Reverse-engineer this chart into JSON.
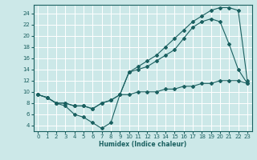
{
  "title": "",
  "xlabel": "Humidex (Indice chaleur)",
  "bg_color": "#cce8e8",
  "line_color": "#1a6060",
  "xlim": [
    -0.5,
    23.5
  ],
  "ylim": [
    3.0,
    25.5
  ],
  "yticks": [
    4,
    6,
    8,
    10,
    12,
    14,
    16,
    18,
    20,
    22,
    24
  ],
  "xticks": [
    0,
    1,
    2,
    3,
    4,
    5,
    6,
    7,
    8,
    9,
    10,
    11,
    12,
    13,
    14,
    15,
    16,
    17,
    18,
    19,
    20,
    21,
    22,
    23
  ],
  "line1_x": [
    0,
    1,
    2,
    3,
    4,
    5,
    6,
    7,
    8,
    9,
    10,
    11,
    12,
    13,
    14,
    15,
    16,
    17,
    18,
    19,
    20,
    21,
    22,
    23
  ],
  "line1_y": [
    9.5,
    9.0,
    8.0,
    8.0,
    7.5,
    7.5,
    7.0,
    8.0,
    8.5,
    9.5,
    9.5,
    10.0,
    10.0,
    10.0,
    10.5,
    10.5,
    11.0,
    11.0,
    11.5,
    11.5,
    12.0,
    12.0,
    12.0,
    11.5
  ],
  "line2_x": [
    0,
    1,
    2,
    3,
    4,
    5,
    6,
    7,
    8,
    9,
    10,
    11,
    12,
    13,
    14,
    15,
    16,
    17,
    18,
    19,
    20,
    21,
    22,
    23
  ],
  "line2_y": [
    9.5,
    9.0,
    8.0,
    7.5,
    6.0,
    5.5,
    4.5,
    3.5,
    4.5,
    9.5,
    13.5,
    14.0,
    14.5,
    15.5,
    16.5,
    17.5,
    19.5,
    21.5,
    22.5,
    23.0,
    22.5,
    18.5,
    14.0,
    11.5
  ],
  "line3_x": [
    0,
    1,
    2,
    3,
    4,
    5,
    6,
    7,
    8,
    9,
    10,
    11,
    12,
    13,
    14,
    15,
    16,
    17,
    18,
    19,
    20,
    21,
    22,
    23
  ],
  "line3_y": [
    9.5,
    9.0,
    8.0,
    8.0,
    7.5,
    7.5,
    7.0,
    8.0,
    8.5,
    9.5,
    13.5,
    14.5,
    15.5,
    16.5,
    18.0,
    19.5,
    21.0,
    22.5,
    23.5,
    24.5,
    25.0,
    25.0,
    24.5,
    12.0
  ]
}
